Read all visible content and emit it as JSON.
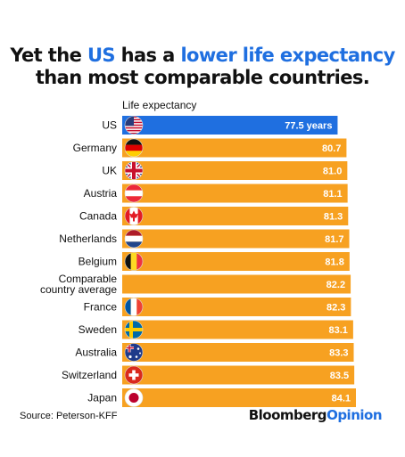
{
  "title": {
    "part1": "Yet the ",
    "highlight1": "US",
    "part2": " has a ",
    "highlight2": "lower life expectancy",
    "line2": "than most comparable countries."
  },
  "source": "Source: Peterson-KFF",
  "brand": {
    "name": "Bloomberg",
    "suffix": "Opinion"
  },
  "colors": {
    "us_bar": "#1f6fe0",
    "other_bar": "#f7a121",
    "highlight": "#1f6fe0"
  },
  "chart_data": {
    "type": "bar",
    "orientation": "horizontal",
    "xlabel": "Life expectancy",
    "categories": [
      "US",
      "Germany",
      "UK",
      "Austria",
      "Canada",
      "Netherlands",
      "Belgium",
      "Comparable country average",
      "France",
      "Sweden",
      "Australia",
      "Switzerland",
      "Japan"
    ],
    "category_lines": [
      [
        "US"
      ],
      [
        "Germany"
      ],
      [
        "UK"
      ],
      [
        "Austria"
      ],
      [
        "Canada"
      ],
      [
        "Netherlands"
      ],
      [
        "Belgium"
      ],
      [
        "Comparable",
        "country average"
      ],
      [
        "France"
      ],
      [
        "Sweden"
      ],
      [
        "Australia"
      ],
      [
        "Switzerland"
      ],
      [
        "Japan"
      ]
    ],
    "values": [
      77.5,
      80.7,
      81.0,
      81.1,
      81.3,
      81.7,
      81.8,
      82.2,
      82.3,
      83.1,
      83.3,
      83.5,
      84.1
    ],
    "labels": [
      "77.5 years",
      "80.7",
      "81.0",
      "81.1",
      "81.3",
      "81.7",
      "81.8",
      "82.2",
      "82.3",
      "83.1",
      "83.3",
      "83.5",
      "84.1"
    ],
    "flags": [
      "us-flag",
      "germany-flag",
      "uk-flag",
      "austria-flag",
      "canada-flag",
      "netherlands-flag",
      "belgium-flag",
      null,
      "france-flag",
      "sweden-flag",
      "australia-flag",
      "switzerland-flag",
      "japan-flag"
    ],
    "xlim": [
      0,
      84.1
    ],
    "grid": false,
    "legend": "none"
  }
}
